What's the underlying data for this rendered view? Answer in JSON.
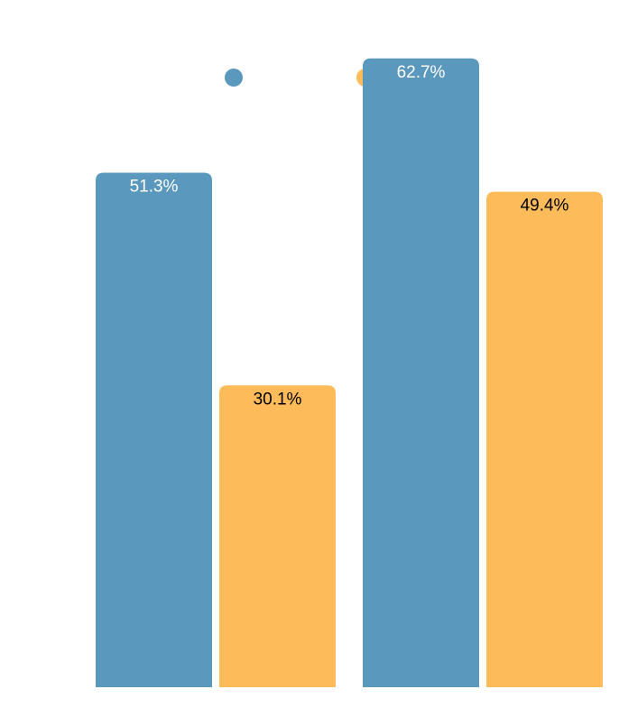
{
  "chart_data": {
    "type": "bar",
    "categories": [
      "",
      ""
    ],
    "series": [
      {
        "values": [
          51.3,
          62.7
        ],
        "color": "#5b98bd",
        "label_color": "#ffffff"
      },
      {
        "values": [
          30.1,
          49.4
        ],
        "color": "#fdbb5a",
        "label_color": "#000000"
      }
    ],
    "value_labels": [
      [
        "51.3%",
        "62.7%"
      ],
      [
        "30.1%",
        "49.4%"
      ]
    ],
    "legend_placement": "top-center",
    "title": "",
    "xlabel": "",
    "ylabel": "",
    "ylim": [
      0,
      70
    ],
    "grid": false
  }
}
